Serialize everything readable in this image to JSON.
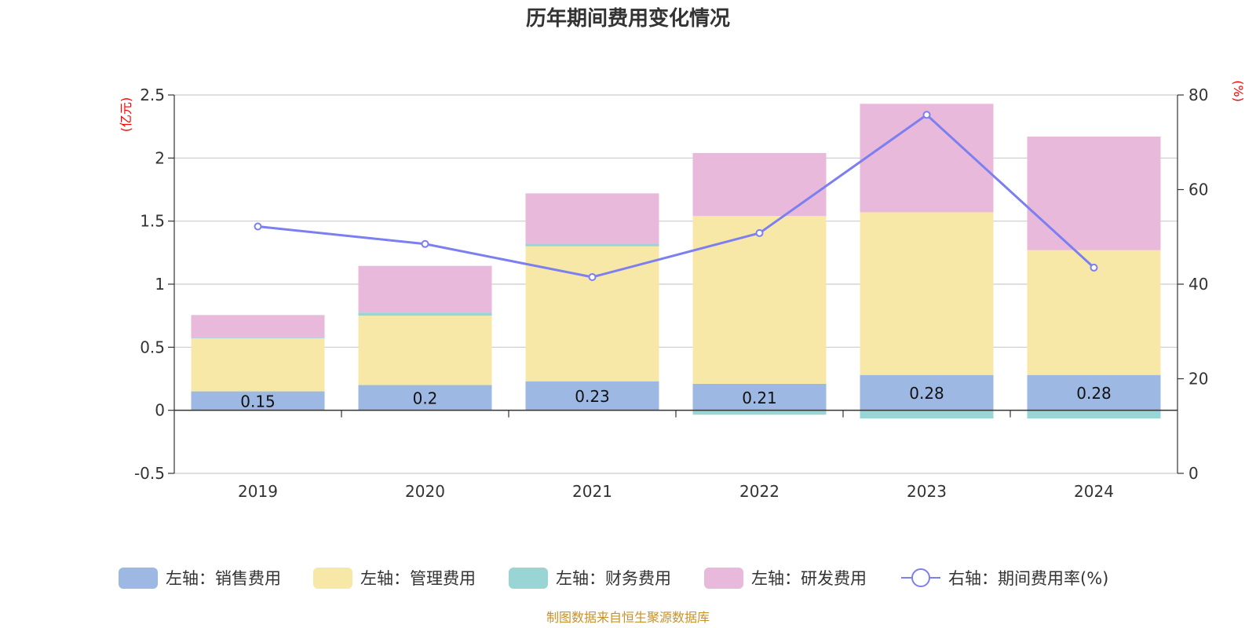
{
  "chart_data": {
    "type": "bar",
    "title": "历年期间费用变化情况",
    "categories": [
      "2019",
      "2020",
      "2021",
      "2022",
      "2023",
      "2024"
    ],
    "left_axis": {
      "unit": "(亿元)",
      "min": -0.5,
      "max": 2.5,
      "ticks": [
        "-0.5",
        "0",
        "0.5",
        "1",
        "1.5",
        "2",
        "2.5"
      ]
    },
    "right_axis": {
      "unit": "(%)",
      "min": 0,
      "max": 80,
      "ticks": [
        "0",
        "20",
        "40",
        "60",
        "80"
      ]
    },
    "series": [
      {
        "name": "左轴：销售费用",
        "type": "bar",
        "color": "#9db8e3",
        "values": [
          0.15,
          0.2,
          0.23,
          0.21,
          0.28,
          0.28
        ],
        "labels": [
          "0.15",
          "0.2",
          "0.23",
          "0.21",
          "0.28",
          "0.28"
        ]
      },
      {
        "name": "左轴：管理费用",
        "type": "bar",
        "color": "#f8e8a8",
        "values": [
          0.42,
          0.55,
          1.07,
          1.33,
          1.29,
          0.99
        ]
      },
      {
        "name": "左轴：财务费用",
        "type": "bar",
        "color": "#9ad5d5",
        "values": [
          0.005,
          0.025,
          0.02,
          -0.035,
          -0.065,
          -0.065
        ]
      },
      {
        "name": "左轴：研发费用",
        "type": "bar",
        "color": "#e8b9da",
        "values": [
          0.18,
          0.37,
          0.4,
          0.5,
          0.86,
          0.9
        ]
      },
      {
        "name": "右轴：期间费用率(%)",
        "type": "line",
        "axis": "right",
        "color": "#7b7ff0",
        "values": [
          52.2,
          48.5,
          41.5,
          50.8,
          75.8,
          43.5
        ]
      }
    ],
    "grid": true,
    "legend_position": "bottom"
  },
  "footer": "制图数据来自恒生聚源数据库"
}
